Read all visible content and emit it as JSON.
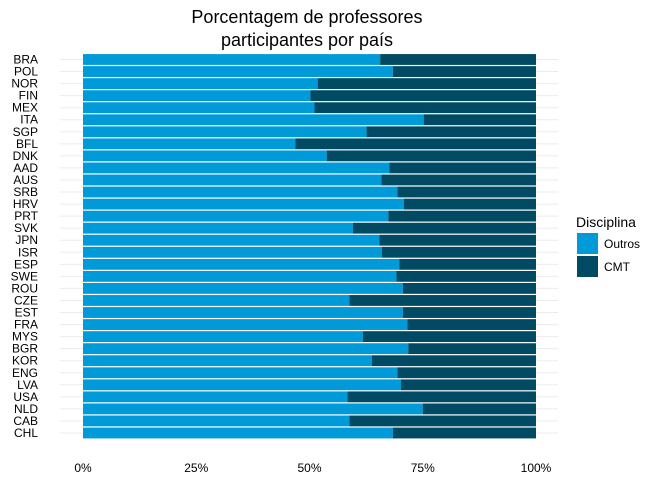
{
  "chart_data": {
    "type": "bar",
    "orientation": "horizontal",
    "stacked": "percent",
    "title": [
      "Porcentagem de professores",
      "participantes por país"
    ],
    "xlabel": "",
    "ylabel": "",
    "xlim": [
      0,
      100
    ],
    "x_ticks": [
      "0%",
      "25%",
      "50%",
      "75%",
      "100%"
    ],
    "x_tick_values": [
      0,
      25,
      50,
      75,
      100
    ],
    "grid": true,
    "legend": {
      "title": "Disciplina",
      "placement": "right"
    },
    "categories": [
      "BRA",
      "POL",
      "NOR",
      "FIN",
      "MEX",
      "ITA",
      "SGP",
      "BFL",
      "DNK",
      "AAD",
      "AUS",
      "SRB",
      "HRV",
      "PRT",
      "SVK",
      "JPN",
      "ISR",
      "ESP",
      "SWE",
      "ROU",
      "CZE",
      "EST",
      "FRA",
      "MYS",
      "BGR",
      "KOR",
      "ENG",
      "LVA",
      "USA",
      "NLD",
      "CAB",
      "CHL"
    ],
    "series": [
      {
        "name": "Outros",
        "color": "#009ad9",
        "values": [
          65.6,
          68.4,
          51.8,
          50.2,
          51.1,
          75.2,
          62.6,
          46.9,
          53.8,
          67.6,
          65.9,
          69.4,
          70.8,
          67.4,
          59.6,
          65.4,
          66.0,
          69.8,
          69.2,
          70.6,
          58.8,
          70.6,
          71.6,
          61.8,
          71.8,
          63.8,
          69.4,
          70.2,
          58.4,
          75.0,
          58.8,
          68.4
        ]
      },
      {
        "name": "CMT",
        "color": "#004a63",
        "values": [
          34.4,
          31.6,
          48.2,
          49.8,
          48.9,
          24.8,
          37.4,
          53.1,
          46.2,
          32.4,
          34.1,
          30.6,
          29.2,
          32.6,
          40.4,
          34.6,
          34.0,
          30.2,
          30.8,
          29.4,
          41.2,
          29.4,
          28.4,
          38.2,
          28.2,
          36.2,
          30.6,
          29.8,
          41.6,
          25.0,
          41.2,
          31.6
        ]
      }
    ]
  }
}
